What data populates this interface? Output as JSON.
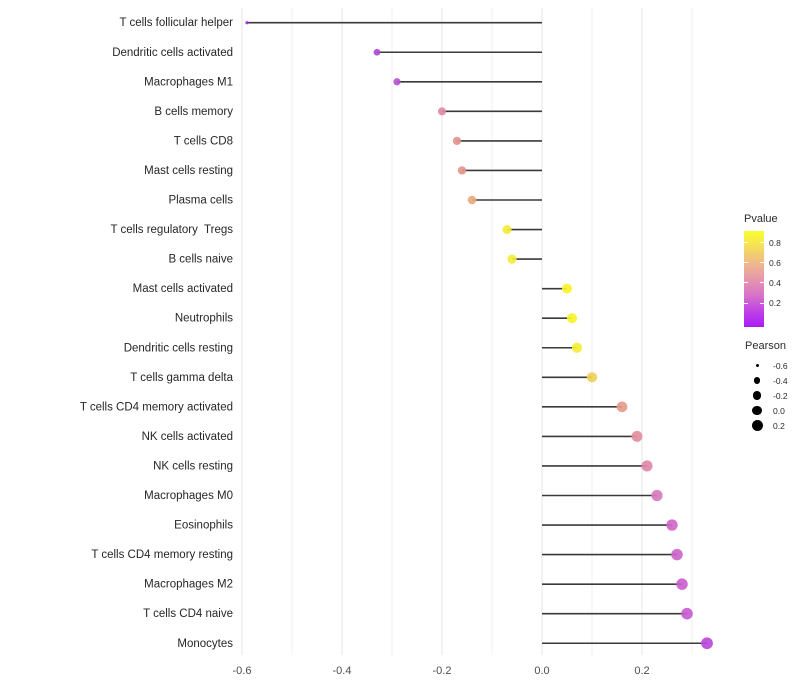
{
  "chart_data": {
    "type": "lollipop",
    "orientation": "horizontal",
    "title": "",
    "xlabel": "",
    "ylabel": "",
    "baseline": 0,
    "x_axis": {
      "range": [
        -0.66,
        0.39
      ],
      "ticks": [
        {
          "value": -0.6,
          "label": "-0.6"
        },
        {
          "value": -0.4,
          "label": "-0.4"
        },
        {
          "value": -0.2,
          "label": "-0.2"
        },
        {
          "value": 0.0,
          "label": "0.0"
        },
        {
          "value": 0.2,
          "label": "0.2"
        }
      ],
      "minor_gridlines": [
        -0.5,
        -0.3,
        -0.1,
        0.1,
        0.3
      ]
    },
    "style": {
      "stem_color": "#3a3a3a",
      "major_grid_color": "#e5e5e5",
      "minor_grid_color": "#f1f1f1",
      "axis_text_color": "#4d4d4d",
      "label_text_color": "#262626"
    },
    "points": [
      {
        "label": "T cells follicular helper",
        "pearson": -0.59,
        "color": "#9f2ce8"
      },
      {
        "label": "Dendritic cells activated",
        "pearson": -0.33,
        "color": "#ae4bd5"
      },
      {
        "label": "Macrophages M1",
        "pearson": -0.29,
        "color": "#b953d1"
      },
      {
        "label": "B cells memory",
        "pearson": -0.2,
        "color": "#e08ba0"
      },
      {
        "label": "T cells CD8",
        "pearson": -0.17,
        "color": "#e29290"
      },
      {
        "label": "Mast cells resting",
        "pearson": -0.16,
        "color": "#e3968c"
      },
      {
        "label": "Plasma cells",
        "pearson": -0.14,
        "color": "#eaab7b"
      },
      {
        "label": "T cells regulatory  Tregs",
        "pearson": -0.07,
        "color": "#f4ec3a"
      },
      {
        "label": "B cells naive",
        "pearson": -0.06,
        "color": "#f4ec3a"
      },
      {
        "label": "Mast cells activated",
        "pearson": 0.05,
        "color": "#f7f32c"
      },
      {
        "label": "Neutrophils",
        "pearson": 0.06,
        "color": "#f7f22e"
      },
      {
        "label": "Dendritic cells resting",
        "pearson": 0.07,
        "color": "#f5ee35"
      },
      {
        "label": "T cells gamma delta",
        "pearson": 0.1,
        "color": "#edd15c"
      },
      {
        "label": "T cells CD4 memory activated",
        "pearson": 0.16,
        "color": "#e59c8d"
      },
      {
        "label": "NK cells activated",
        "pearson": 0.19,
        "color": "#e28f9d"
      },
      {
        "label": "NK cells resting",
        "pearson": 0.21,
        "color": "#df87a8"
      },
      {
        "label": "Macrophages M0",
        "pearson": 0.23,
        "color": "#d779bd"
      },
      {
        "label": "Eosinophils",
        "pearson": 0.26,
        "color": "#ce68c9"
      },
      {
        "label": "T cells CD4 memory resting",
        "pearson": 0.27,
        "color": "#cc65c9"
      },
      {
        "label": "Macrophages M2",
        "pearson": 0.28,
        "color": "#c960cd"
      },
      {
        "label": "T cells CD4 naive",
        "pearson": 0.29,
        "color": "#c75cd1"
      },
      {
        "label": "Monocytes",
        "pearson": 0.33,
        "color": "#bc48dc"
      }
    ],
    "legend_pvalue": {
      "title": "Pvalue",
      "gradient": [
        "#faff2c",
        "#f5de5a",
        "#efb98a",
        "#e697ac",
        "#d873c8",
        "#bf43e6",
        "#a81cf5"
      ],
      "ticks": [
        {
          "label": "0.8",
          "pos": 0.12
        },
        {
          "label": "0.6",
          "pos": 0.33
        },
        {
          "label": "0.4",
          "pos": 0.54
        },
        {
          "label": "0.2",
          "pos": 0.75
        }
      ]
    },
    "legend_pearson": {
      "title": "Pearson",
      "ticks": [
        {
          "label": "-0.6",
          "value": -0.6
        },
        {
          "label": "-0.4",
          "value": -0.4
        },
        {
          "label": "-0.2",
          "value": -0.2
        },
        {
          "label": "0.0",
          "value": 0.0
        },
        {
          "label": "0.2",
          "value": 0.2
        }
      ]
    }
  }
}
